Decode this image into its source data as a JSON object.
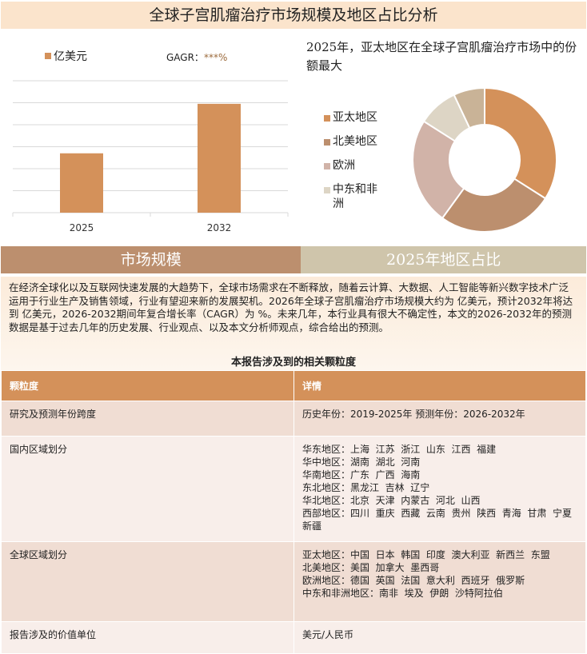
{
  "title": "全球子宫肌瘤治疗市场规模及地区占比分析",
  "bar_legend": "亿美元",
  "cagr_label": "GAGR：",
  "cagr_value": "***%",
  "pie_title": "2025年，亚太地区在全球子宫肌瘤治疗市场中的份额最大",
  "tabs": [
    "市场规模",
    "2025年地区占比"
  ],
  "description": "在经济全球化以及互联网快速发展的大趋势下，全球市场需求在不断释放，随着云计算、大数据、人工智能等新兴数字技术广泛运用于行业生产及销售领域，行业有望迎来新的发展契机。2026年全球子宫肌瘤治疗市场规模大约为 亿美元，预计2032年将达到 亿美元，2026-2032期间年复合增长率（CAGR）为 %。未来几年，本行业具有很大不确定性，本文的2026-2032年的预测数据是基于过去几年的历史发展、行业观点、以及本文分析师观点，综合给出的预测。",
  "table_title": "本报告涉及到的相关颗粒度",
  "table": {
    "headers": [
      "颗粒度",
      "详情"
    ],
    "rows": [
      {
        "label": "研究及预测年份跨度",
        "detail": [
          "历史年份：2019-2025年 预测年份：2026-2032年"
        ]
      },
      {
        "label": "国内区域划分",
        "detail": [
          "华东地区：上海  江苏  浙江  山东  江西  福建",
          "华中地区：湖南  湖北  河南",
          "华南地区：广东  广西  海南",
          "东北地区：黑龙江  吉林  辽宁",
          "华北地区：北京  天津  内蒙古  河北  山西",
          "西部地区：四川  重庆  西藏  云南  贵州  陕西  青海  甘肃  宁夏  新疆"
        ]
      },
      {
        "label": "全球区域划分",
        "detail": [
          "亚太地区：中国  日本  韩国  印度  澳大利亚  新西兰  东盟",
          "北美地区：美国  加拿大  墨西哥",
          "欧洲地区：德国  英国  法国  意大利  西班牙  俄罗斯",
          "中东和非洲地区：南非  埃及  伊朗  沙特阿拉伯"
        ]
      },
      {
        "label": "报告涉及的价值单位",
        "detail": [
          "美元/人民币"
        ]
      }
    ]
  },
  "chart_data": [
    {
      "type": "bar",
      "categories": [
        "2025",
        "2032"
      ],
      "series": [
        {
          "name": "亿美元",
          "values": [
            2.7,
            4.95
          ]
        }
      ],
      "ylim": [
        0,
        6
      ],
      "grid": true,
      "color": "#D4915A",
      "legend": "top-left"
    },
    {
      "type": "pie",
      "variant": "donut",
      "labels": [
        "亚太地区",
        "北美地区",
        "欧洲",
        "中东和非洲",
        ""
      ],
      "values": [
        34,
        26,
        24,
        9,
        7
      ],
      "colors": [
        "#D4915A",
        "#BC8F6E",
        "#D1B3A8",
        "#DDD5C5",
        "#C9B397"
      ],
      "legend": "left"
    }
  ]
}
